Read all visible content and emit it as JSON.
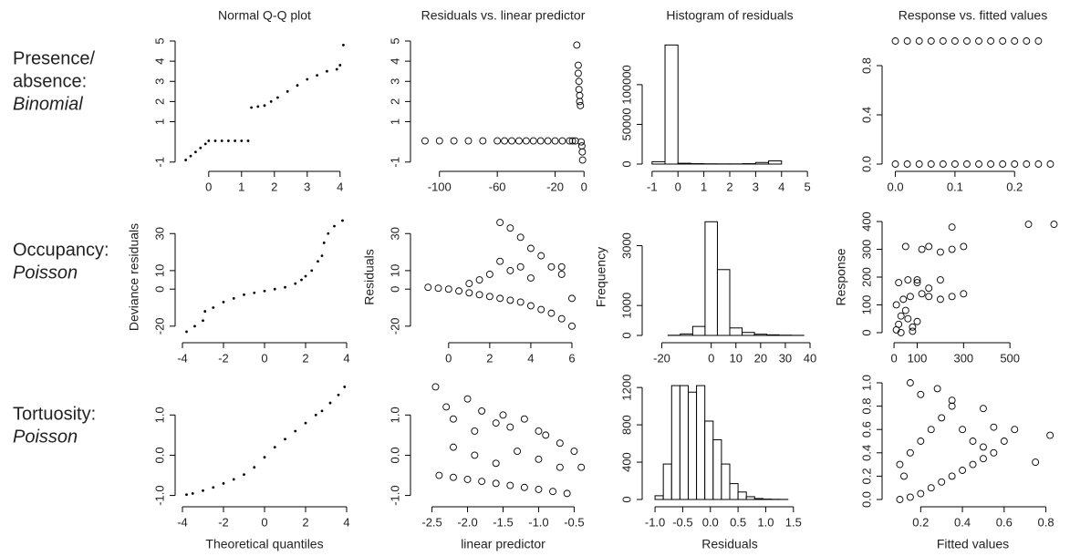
{
  "row_labels": [
    {
      "lines": [
        "Presence/",
        "absence:"
      ],
      "model": "Binomial"
    },
    {
      "lines": [
        "Occupancy:"
      ],
      "model": "Poisson"
    },
    {
      "lines": [
        "Tortuosity:"
      ],
      "model": "Poisson"
    }
  ],
  "chart_data": [
    {
      "type": "scatter",
      "marker": "dot",
      "title": "Normal Q-Q plot",
      "x": [
        -0.7,
        -0.55,
        -0.4,
        -0.25,
        -0.1,
        0,
        0.2,
        0.4,
        0.6,
        0.8,
        1.0,
        1.2,
        1.3,
        1.5,
        1.7,
        1.9,
        2.1,
        2.4,
        2.7,
        3.0,
        3.3,
        3.6,
        3.9,
        4.0,
        4.1
      ],
      "values": [
        -0.9,
        -0.7,
        -0.5,
        -0.3,
        -0.1,
        0.05,
        0.05,
        0.05,
        0.05,
        0.05,
        0.05,
        0.05,
        1.7,
        1.75,
        1.8,
        2.0,
        2.2,
        2.5,
        2.8,
        3.1,
        3.3,
        3.5,
        3.6,
        3.8,
        4.8
      ],
      "xlim": [
        -0.8,
        4.2
      ],
      "ylim": [
        -1.1,
        5
      ],
      "xticks": [
        0,
        1,
        2,
        3,
        4
      ],
      "yticks": [
        -1,
        1,
        2,
        3,
        4,
        5
      ]
    },
    {
      "type": "scatter",
      "marker": "circle",
      "title": "Residuals vs. linear predictor",
      "x": [
        -110,
        -100,
        -90,
        -80,
        -70,
        -60,
        -55,
        -50,
        -45,
        -40,
        -35,
        -30,
        -25,
        -20,
        -15,
        -10,
        -8,
        -6,
        -5,
        -4,
        -4,
        -3.5,
        -3.5,
        -3,
        -3,
        -2.5,
        -2,
        -1.5,
        -1.2,
        -1
      ],
      "values": [
        0.05,
        0.05,
        0.05,
        0.05,
        0.05,
        0.05,
        0.05,
        0.05,
        0.05,
        0.05,
        0.05,
        0.05,
        0.05,
        0.05,
        0.05,
        0.05,
        0.05,
        0.05,
        4.8,
        3.8,
        3.4,
        3.0,
        2.6,
        2.3,
        2.0,
        1.8,
        0.0,
        -0.2,
        -0.5,
        -0.9
      ],
      "xlim": [
        -115,
        3
      ],
      "ylim": [
        -1.1,
        5
      ],
      "xticks": [
        -100,
        -60,
        -20,
        0
      ],
      "yticks": [
        -1,
        1,
        2,
        3,
        4,
        5
      ]
    },
    {
      "type": "histogram",
      "title": "Histogram of residuals",
      "bins": [
        -1,
        -0.5,
        0,
        0.5,
        1,
        1.5,
        2,
        2.5,
        3,
        3.5,
        4,
        4.5,
        5
      ],
      "values": [
        3000,
        150000,
        1000,
        500,
        300,
        200,
        200,
        500,
        2000,
        4000,
        0,
        0
      ],
      "xlim": [
        -1.1,
        5.1
      ],
      "ylim": [
        0,
        155000
      ],
      "xticks": [
        -1,
        0,
        1,
        2,
        3,
        4,
        5
      ],
      "yticks": [
        0,
        50000,
        100000
      ]
    },
    {
      "type": "scatter",
      "marker": "circle",
      "title": "Response vs. fitted values",
      "x": [
        0,
        0.02,
        0.04,
        0.06,
        0.08,
        0.1,
        0.12,
        0.14,
        0.16,
        0.18,
        0.2,
        0.22,
        0.24,
        0,
        0.02,
        0.04,
        0.06,
        0.08,
        0.1,
        0.12,
        0.14,
        0.16,
        0.18,
        0.2,
        0.22,
        0.24,
        0.26
      ],
      "values": [
        1,
        1,
        1,
        1,
        1,
        1,
        1,
        1,
        1,
        1,
        1,
        1,
        1,
        0,
        0,
        0,
        0,
        0,
        0,
        0,
        0,
        0,
        0,
        0,
        0,
        0,
        0
      ],
      "xlim": [
        -0.01,
        0.27
      ],
      "ylim": [
        0,
        1
      ],
      "xticks": [
        {
          "value": 0,
          "label": "0.0"
        },
        0.1,
        0.2
      ],
      "yticks": [
        {
          "value": 0,
          "label": "0.0"
        },
        0.4,
        0.8
      ]
    },
    {
      "type": "scatter",
      "marker": "dot",
      "ylabel": "Deviance residuals",
      "x": [
        -3.8,
        -3.4,
        -3,
        -2.9,
        -2.5,
        -2,
        -1.5,
        -1,
        -0.5,
        0,
        0.5,
        1,
        1.5,
        1.8,
        2,
        2.3,
        2.6,
        2.8,
        2.9,
        3.1,
        3.4,
        3.8
      ],
      "values": [
        -23,
        -20,
        -17,
        -12,
        -10,
        -7,
        -5,
        -3,
        -2,
        -1,
        0,
        1,
        3,
        5,
        7,
        10,
        15,
        18,
        25,
        30,
        34,
        37
      ],
      "xlim": [
        -4,
        4
      ],
      "ylim": [
        -25,
        38
      ],
      "xticks": [
        -4,
        -2,
        0,
        2,
        4
      ],
      "yticks": [
        -20,
        0,
        10,
        30
      ]
    },
    {
      "type": "scatter",
      "marker": "circle",
      "ylabel": "Residuals",
      "x": [
        -1,
        -0.5,
        0,
        0.5,
        1,
        1.5,
        2,
        2.5,
        3,
        3.5,
        4,
        4.5,
        5,
        5.5,
        6,
        1,
        1.5,
        2,
        2.5,
        3,
        3.5,
        4,
        4.5,
        5,
        5.5,
        2.5,
        3,
        3.5,
        4,
        5.5,
        6
      ],
      "values": [
        1,
        0.5,
        0,
        -1,
        -2,
        -3,
        -4,
        -5,
        -6,
        -7,
        -9,
        -11,
        -13,
        -16,
        -20,
        3,
        5,
        8,
        15,
        10,
        12,
        6,
        18,
        12,
        8,
        36,
        33,
        28,
        22,
        12,
        -5
      ],
      "xlim": [
        -1.5,
        6.8
      ],
      "ylim": [
        -25,
        38
      ],
      "xticks": [
        0,
        2,
        4,
        6
      ],
      "yticks": [
        -20,
        0,
        10,
        30
      ]
    },
    {
      "type": "histogram",
      "ylabel": "Frequency",
      "bins": [
        -22.5,
        -17.5,
        -12.5,
        -7.5,
        -2.5,
        2.5,
        7.5,
        12.5,
        17.5,
        22.5,
        27.5,
        32.5,
        37.5
      ],
      "values": [
        0,
        5,
        50,
        300,
        3800,
        2200,
        250,
        100,
        40,
        20,
        8,
        3
      ],
      "xlim": [
        -25,
        40
      ],
      "ylim": [
        0,
        3900
      ],
      "xticks": [
        -20,
        0,
        10,
        20,
        30,
        40
      ],
      "yticks": [
        0,
        1000,
        3000
      ]
    },
    {
      "type": "scatter",
      "marker": "circle",
      "ylabel": "Response",
      "x": [
        10,
        20,
        30,
        50,
        60,
        80,
        100,
        10,
        40,
        70,
        120,
        150,
        200,
        250,
        300,
        20,
        60,
        100,
        200,
        250,
        300,
        120,
        150,
        200,
        250,
        580,
        690,
        50,
        100,
        150,
        30,
        80
      ],
      "values": [
        10,
        30,
        60,
        80,
        50,
        20,
        40,
        100,
        120,
        130,
        140,
        130,
        120,
        130,
        140,
        180,
        190,
        180,
        190,
        300,
        310,
        300,
        310,
        290,
        380,
        390,
        390,
        310,
        190,
        160,
        0,
        5
      ],
      "xlim": [
        -20,
        700
      ],
      "ylim": [
        -10,
        410
      ],
      "xticks": [
        0,
        100,
        300,
        500
      ],
      "yticks": [
        0,
        100,
        200,
        300,
        400
      ]
    },
    {
      "type": "scatter",
      "marker": "dot",
      "xlabel": "Theoretical quantiles",
      "x": [
        -3.8,
        -3.5,
        -3,
        -2.5,
        -2,
        -1.5,
        -1,
        -0.5,
        0,
        0.5,
        1,
        1.5,
        2,
        2.5,
        2.8,
        3.2,
        3.6,
        3.9
      ],
      "values": [
        -0.98,
        -0.95,
        -0.88,
        -0.8,
        -0.7,
        -0.6,
        -0.48,
        -0.3,
        -0.05,
        0.2,
        0.4,
        0.6,
        0.8,
        1.0,
        1.1,
        1.3,
        1.5,
        1.7
      ],
      "xlim": [
        -4,
        4
      ],
      "ylim": [
        -1.1,
        1.8
      ],
      "xticks": [
        -4,
        -2,
        0,
        2,
        4
      ],
      "yticks": [
        {
          "value": -1,
          "label": "-1.0"
        },
        {
          "value": 0,
          "label": "0.0"
        },
        {
          "value": 1,
          "label": "1.0"
        }
      ]
    },
    {
      "type": "scatter",
      "marker": "circle",
      "xlabel": "linear predictor",
      "x": [
        -2.45,
        -2.3,
        -2.2,
        -2.0,
        -1.9,
        -1.8,
        -1.6,
        -1.5,
        -1.4,
        -1.2,
        -1.0,
        -0.9,
        -0.7,
        -0.5,
        -0.4,
        -2.4,
        -2.2,
        -2.0,
        -1.8,
        -1.6,
        -1.4,
        -1.2,
        -1.0,
        -0.8,
        -0.6,
        -2.2,
        -1.9,
        -1.6,
        -1.3,
        -1.0,
        -0.7
      ],
      "values": [
        1.7,
        1.2,
        0.9,
        1.4,
        0.6,
        1.1,
        0.8,
        1.0,
        0.7,
        0.9,
        0.6,
        0.5,
        0.3,
        0.1,
        -0.3,
        -0.5,
        -0.55,
        -0.6,
        -0.65,
        -0.7,
        -0.75,
        -0.8,
        -0.85,
        -0.9,
        -0.95,
        0.2,
        0,
        -0.2,
        0.1,
        -0.1,
        -0.3
      ],
      "xlim": [
        -2.7,
        -0.3
      ],
      "ylim": [
        -1.1,
        1.8
      ],
      "xticks": [
        -2.5,
        {
          "value": -2,
          "label": "-2.0"
        },
        -1.5,
        {
          "value": -1,
          "label": "-1.0"
        },
        -0.5
      ],
      "yticks": [
        {
          "value": -1,
          "label": "-1.0"
        },
        {
          "value": 0,
          "label": "0.0"
        },
        {
          "value": 1,
          "label": "1.0"
        }
      ]
    },
    {
      "type": "histogram",
      "xlabel": "Residuals",
      "bins": [
        -1.0,
        -0.85,
        -0.7,
        -0.55,
        -0.4,
        -0.25,
        -0.1,
        0.05,
        0.2,
        0.35,
        0.5,
        0.65,
        0.8,
        0.95,
        1.1,
        1.25,
        1.4,
        1.55,
        1.7
      ],
      "values": [
        40,
        380,
        1220,
        1220,
        1150,
        1220,
        840,
        640,
        380,
        170,
        80,
        30,
        10,
        4,
        2,
        1,
        0,
        0
      ],
      "xlim": [
        -1.1,
        1.8
      ],
      "ylim": [
        0,
        1250
      ],
      "xticks": [
        {
          "value": -1,
          "label": "-1.0"
        },
        -0.5,
        {
          "value": 0,
          "label": "0.0"
        },
        0.5,
        {
          "value": 1,
          "label": "1.0"
        },
        1.5
      ],
      "yticks": [
        0,
        400,
        800,
        1200
      ]
    },
    {
      "type": "scatter",
      "marker": "circle",
      "xlabel": "Fitted values",
      "x": [
        0.1,
        0.15,
        0.2,
        0.25,
        0.3,
        0.35,
        0.4,
        0.45,
        0.5,
        0.55,
        0.6,
        0.65,
        0.1,
        0.15,
        0.2,
        0.25,
        0.3,
        0.35,
        0.4,
        0.45,
        0.5,
        0.55,
        0.15,
        0.2,
        0.28,
        0.35,
        0.5,
        0.75,
        0.82,
        0.12
      ],
      "values": [
        0,
        0.02,
        0.05,
        0.1,
        0.15,
        0.2,
        0.25,
        0.3,
        0.35,
        0.4,
        0.5,
        0.6,
        0.3,
        0.4,
        0.5,
        0.6,
        0.7,
        0.8,
        0.6,
        0.5,
        0.45,
        0.62,
        1.0,
        0.9,
        0.95,
        0.85,
        0.78,
        0.32,
        0.55,
        0.2
      ],
      "xlim": [
        0.05,
        0.85
      ],
      "ylim": [
        0,
        1
      ],
      "xticks": [
        0.2,
        0.4,
        0.6,
        0.8
      ],
      "yticks": [
        {
          "value": 0,
          "label": "0.0"
        },
        0.2,
        0.4,
        0.6,
        0.8,
        {
          "value": 1,
          "label": "1.0"
        }
      ]
    }
  ]
}
